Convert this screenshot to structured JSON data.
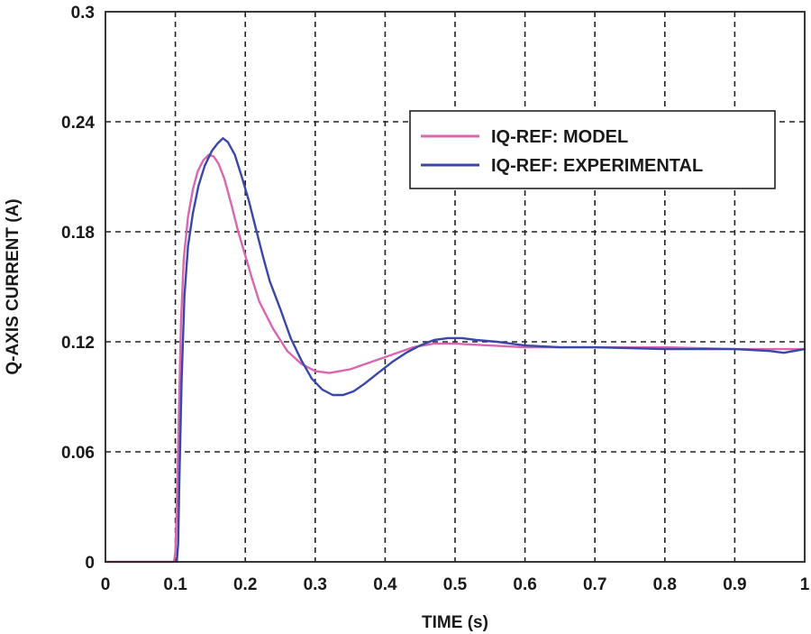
{
  "chart_data": {
    "type": "line",
    "title": "",
    "xlabel": "TIME (s)",
    "ylabel": "Q-AXIS CURRENT (A)",
    "xlim": [
      0,
      1
    ],
    "ylim": [
      0,
      0.3
    ],
    "xticks": [
      "0",
      "0.1",
      "0.2",
      "0.3",
      "0.4",
      "0.5",
      "0.6",
      "0.7",
      "0.8",
      "0.9",
      "1"
    ],
    "yticks": [
      "0",
      "0.06",
      "0.12",
      "0.18",
      "0.24",
      "0.3"
    ],
    "grid": true,
    "legend_position": "top-right",
    "series": [
      {
        "name": "IQ-REF: MODEL",
        "color": "#d966b0",
        "points": [
          [
            0,
            0
          ],
          [
            0.098,
            0
          ],
          [
            0.1,
            0.005
          ],
          [
            0.102,
            0.03
          ],
          [
            0.105,
            0.08
          ],
          [
            0.108,
            0.13
          ],
          [
            0.112,
            0.165
          ],
          [
            0.118,
            0.188
          ],
          [
            0.125,
            0.203
          ],
          [
            0.132,
            0.213
          ],
          [
            0.14,
            0.219
          ],
          [
            0.148,
            0.222
          ],
          [
            0.155,
            0.221
          ],
          [
            0.162,
            0.217
          ],
          [
            0.17,
            0.209
          ],
          [
            0.18,
            0.195
          ],
          [
            0.19,
            0.18
          ],
          [
            0.2,
            0.167
          ],
          [
            0.21,
            0.154
          ],
          [
            0.22,
            0.142
          ],
          [
            0.24,
            0.127
          ],
          [
            0.26,
            0.115
          ],
          [
            0.28,
            0.108
          ],
          [
            0.3,
            0.104
          ],
          [
            0.32,
            0.103
          ],
          [
            0.35,
            0.105
          ],
          [
            0.38,
            0.109
          ],
          [
            0.41,
            0.113
          ],
          [
            0.44,
            0.117
          ],
          [
            0.47,
            0.119
          ],
          [
            0.5,
            0.119
          ],
          [
            0.55,
            0.118
          ],
          [
            0.6,
            0.117
          ],
          [
            0.7,
            0.117
          ],
          [
            0.8,
            0.117
          ],
          [
            0.9,
            0.116
          ],
          [
            1.0,
            0.116
          ]
        ]
      },
      {
        "name": "IQ-REF: EXPERIMENTAL",
        "color": "#3a47a8",
        "points": [
          [
            0.102,
            0
          ],
          [
            0.104,
            0.01
          ],
          [
            0.106,
            0.05
          ],
          [
            0.109,
            0.1
          ],
          [
            0.113,
            0.145
          ],
          [
            0.118,
            0.172
          ],
          [
            0.125,
            0.19
          ],
          [
            0.133,
            0.205
          ],
          [
            0.142,
            0.216
          ],
          [
            0.152,
            0.224
          ],
          [
            0.16,
            0.228
          ],
          [
            0.168,
            0.231
          ],
          [
            0.175,
            0.229
          ],
          [
            0.185,
            0.222
          ],
          [
            0.195,
            0.21
          ],
          [
            0.205,
            0.197
          ],
          [
            0.215,
            0.182
          ],
          [
            0.225,
            0.167
          ],
          [
            0.235,
            0.153
          ],
          [
            0.25,
            0.138
          ],
          [
            0.265,
            0.122
          ],
          [
            0.28,
            0.11
          ],
          [
            0.295,
            0.1
          ],
          [
            0.31,
            0.094
          ],
          [
            0.325,
            0.091
          ],
          [
            0.34,
            0.091
          ],
          [
            0.355,
            0.093
          ],
          [
            0.37,
            0.097
          ],
          [
            0.39,
            0.103
          ],
          [
            0.41,
            0.109
          ],
          [
            0.43,
            0.114
          ],
          [
            0.45,
            0.118
          ],
          [
            0.47,
            0.121
          ],
          [
            0.49,
            0.122
          ],
          [
            0.51,
            0.122
          ],
          [
            0.53,
            0.121
          ],
          [
            0.56,
            0.12
          ],
          [
            0.6,
            0.118
          ],
          [
            0.65,
            0.117
          ],
          [
            0.7,
            0.117
          ],
          [
            0.8,
            0.116
          ],
          [
            0.9,
            0.116
          ],
          [
            0.95,
            0.115
          ],
          [
            0.97,
            0.114
          ],
          [
            1.0,
            0.116
          ]
        ]
      }
    ]
  }
}
